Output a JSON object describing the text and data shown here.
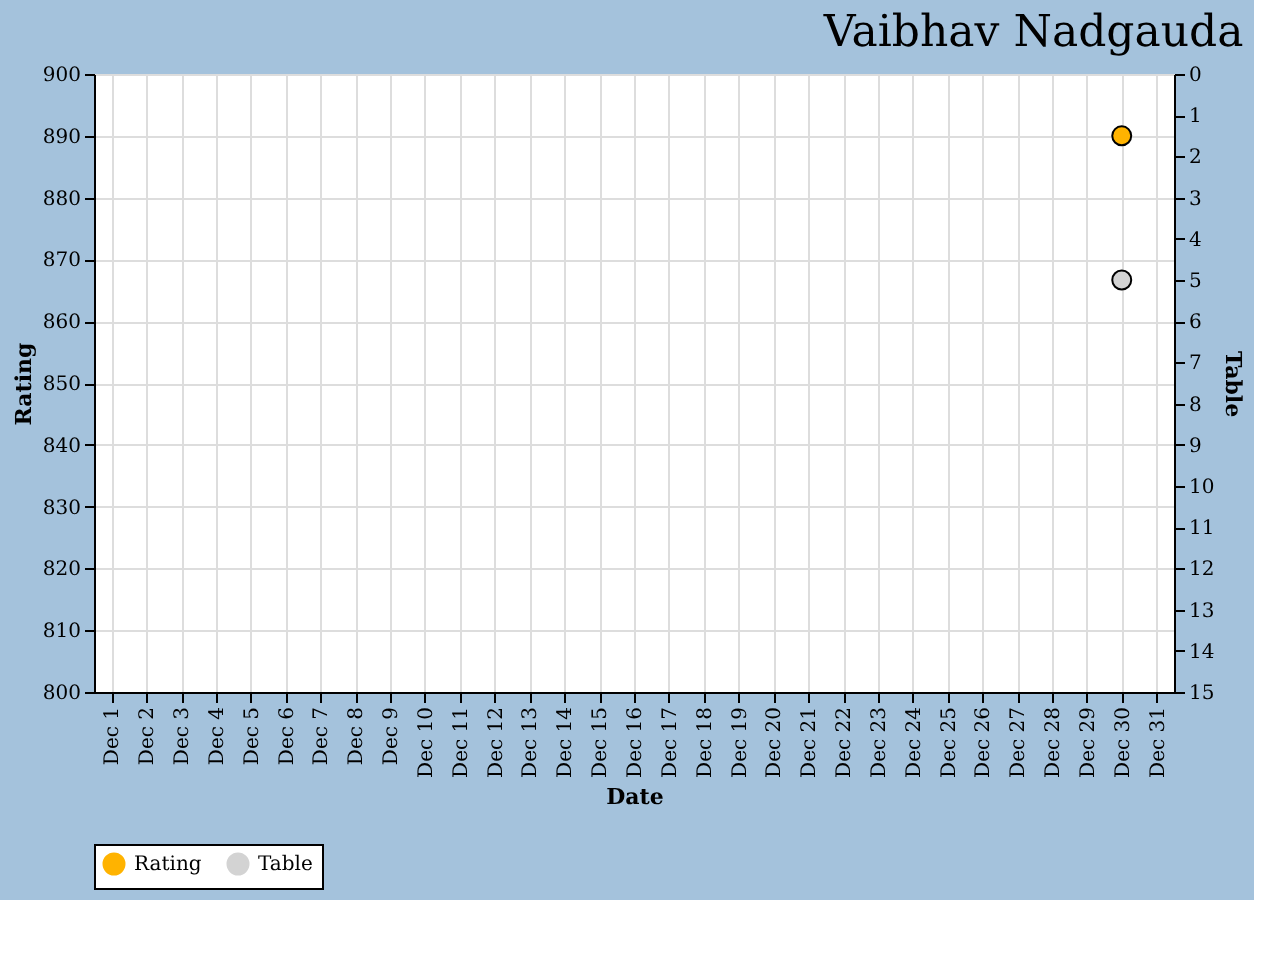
{
  "chart_data": {
    "type": "line",
    "title": "Vaibhav Nadgauda",
    "xlabel": "Date",
    "ylabel": "Rating",
    "y2label": "Table",
    "categories": [
      "Dec 1",
      "Dec 2",
      "Dec 3",
      "Dec 4",
      "Dec 5",
      "Dec 6",
      "Dec 7",
      "Dec 8",
      "Dec 9",
      "Dec 10",
      "Dec 11",
      "Dec 12",
      "Dec 13",
      "Dec 14",
      "Dec 15",
      "Dec 16",
      "Dec 17",
      "Dec 18",
      "Dec 19",
      "Dec 20",
      "Dec 21",
      "Dec 22",
      "Dec 23",
      "Dec 24",
      "Dec 25",
      "Dec 26",
      "Dec 27",
      "Dec 28",
      "Dec 29",
      "Dec 30",
      "Dec 31"
    ],
    "series": [
      {
        "name": "Rating",
        "color": "#ffb300",
        "values": [
          null,
          null,
          null,
          null,
          null,
          null,
          null,
          null,
          null,
          null,
          null,
          null,
          null,
          null,
          null,
          null,
          null,
          null,
          null,
          null,
          null,
          null,
          null,
          null,
          null,
          null,
          null,
          null,
          null,
          890,
          null
        ]
      },
      {
        "name": "Table",
        "color": "#d3d3d3",
        "axis": "y2",
        "values": [
          null,
          null,
          null,
          null,
          null,
          null,
          null,
          null,
          null,
          null,
          null,
          null,
          null,
          null,
          null,
          null,
          null,
          null,
          null,
          null,
          null,
          null,
          null,
          null,
          null,
          null,
          null,
          null,
          null,
          5,
          null
        ]
      }
    ],
    "ylim": [
      800,
      900
    ],
    "yticks": [
      800,
      810,
      820,
      830,
      840,
      850,
      860,
      870,
      880,
      890,
      900
    ],
    "y2lim": [
      15,
      0
    ],
    "y2ticks": [
      0,
      1,
      2,
      3,
      4,
      5,
      6,
      7,
      8,
      9,
      10,
      11,
      12,
      13,
      14,
      15
    ],
    "grid": true,
    "legend": "bottom",
    "marker": "circle"
  }
}
